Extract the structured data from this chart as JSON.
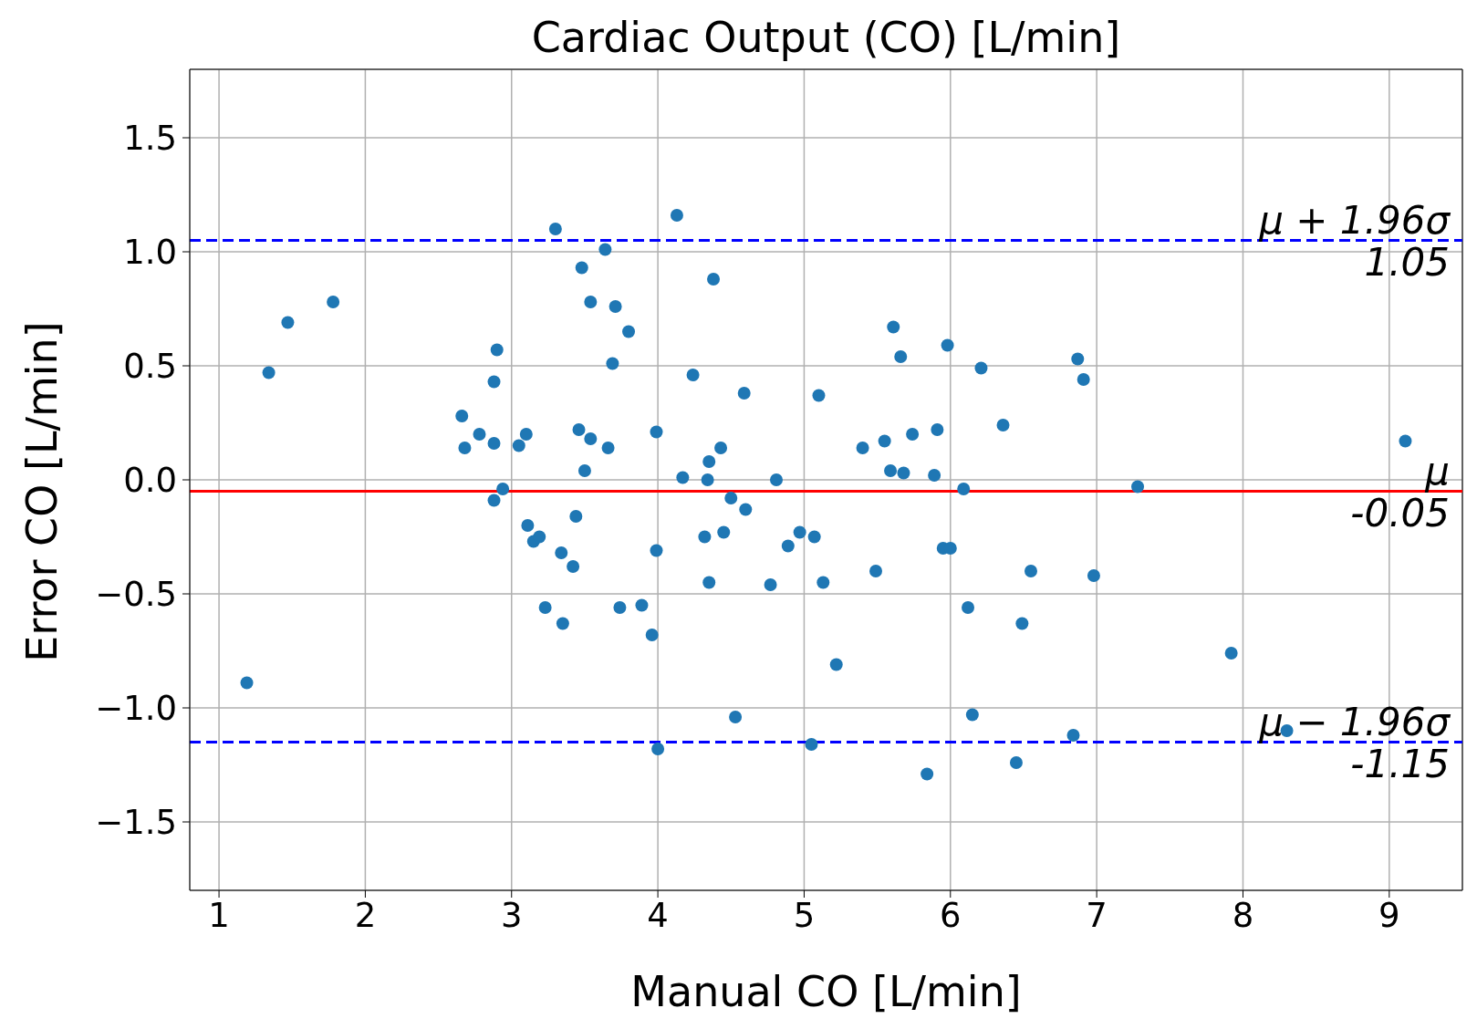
{
  "chart_data": {
    "type": "scatter",
    "title": "Cardiac Output (CO) [L/min]",
    "xlabel": "Manual CO [L/min]",
    "ylabel": "Error CO [L/min]",
    "x": [
      1.19,
      1.34,
      1.47,
      1.78,
      2.66,
      2.68,
      2.78,
      2.88,
      2.88,
      2.9,
      2.88,
      2.94,
      3.05,
      3.1,
      3.11,
      3.15,
      3.19,
      3.23,
      3.3,
      3.34,
      3.35,
      3.42,
      3.44,
      3.46,
      3.48,
      3.5,
      3.54,
      3.54,
      3.64,
      3.66,
      3.69,
      3.71,
      3.74,
      3.8,
      3.89,
      3.96,
      3.99,
      3.99,
      4.0,
      4.13,
      4.17,
      4.24,
      4.32,
      4.34,
      4.35,
      4.35,
      4.38,
      4.43,
      4.45,
      4.5,
      4.53,
      4.59,
      4.6,
      4.77,
      4.81,
      4.89,
      4.97,
      5.05,
      5.07,
      5.1,
      5.13,
      5.22,
      5.4,
      5.49,
      5.55,
      5.59,
      5.61,
      5.66,
      5.68,
      5.74,
      5.84,
      5.89,
      5.91,
      5.95,
      5.98,
      6.0,
      6.09,
      6.12,
      6.15,
      6.21,
      6.36,
      6.45,
      6.49,
      6.55,
      6.84,
      6.87,
      6.91,
      6.98,
      7.28,
      7.92,
      8.3,
      9.11
    ],
    "series": [
      {
        "color": "#1f77b4",
        "values": [
          -0.89,
          0.47,
          0.69,
          0.78,
          0.28,
          0.14,
          0.2,
          0.43,
          0.16,
          0.57,
          -0.09,
          -0.04,
          0.15,
          0.2,
          -0.2,
          -0.27,
          -0.25,
          -0.56,
          1.1,
          -0.32,
          -0.63,
          -0.38,
          -0.16,
          0.22,
          0.93,
          0.04,
          0.78,
          0.18,
          1.01,
          0.14,
          0.51,
          0.76,
          -0.56,
          0.65,
          -0.55,
          -0.68,
          0.21,
          -0.31,
          -1.18,
          1.16,
          0.01,
          0.46,
          -0.25,
          0.0,
          0.08,
          -0.45,
          0.88,
          0.14,
          -0.23,
          -0.08,
          -1.04,
          0.38,
          -0.13,
          -0.46,
          0.0,
          -0.29,
          -0.23,
          -1.16,
          -0.25,
          0.37,
          -0.45,
          -0.81,
          0.14,
          -0.4,
          0.17,
          0.04,
          0.67,
          0.54,
          0.03,
          0.2,
          -1.29,
          0.02,
          0.22,
          -0.3,
          0.59,
          -0.3,
          -0.04,
          -0.56,
          -1.03,
          0.49,
          0.24,
          -1.24,
          -0.63,
          -0.4,
          -1.12,
          0.53,
          0.44,
          -0.42,
          -0.03,
          -0.76,
          -1.1,
          0.17
        ]
      }
    ],
    "xlim": [
      0.8,
      9.5
    ],
    "xticks": [
      1,
      2,
      3,
      4,
      5,
      6,
      7,
      8,
      9
    ],
    "ylim": [
      -1.8,
      1.8
    ],
    "yticks": [
      {
        "value": -1.5,
        "label": "−1.5"
      },
      {
        "value": -1.0,
        "label": "−1.0"
      },
      {
        "value": -0.5,
        "label": "−0.5"
      },
      {
        "value": 0,
        "label": "0.0"
      },
      {
        "value": 0.5,
        "label": "0.5"
      },
      {
        "value": 1.0,
        "label": "1.0"
      },
      {
        "value": 1.5,
        "label": "1.5"
      }
    ],
    "grid": true,
    "marker": "circle",
    "ref_lines": [
      {
        "axis": "y",
        "value": 1.05,
        "label": "μ + 1.96σ\n1.05",
        "color": "#0000ff",
        "line_style": "dashed"
      },
      {
        "axis": "y",
        "value": -0.05,
        "label": "μ\n-0.05",
        "color": "#ff0000",
        "line_style": "solid"
      },
      {
        "axis": "y",
        "value": -1.15,
        "label": "μ − 1.96σ\n-1.15",
        "color": "#0000ff",
        "line_style": "dashed"
      }
    ]
  }
}
